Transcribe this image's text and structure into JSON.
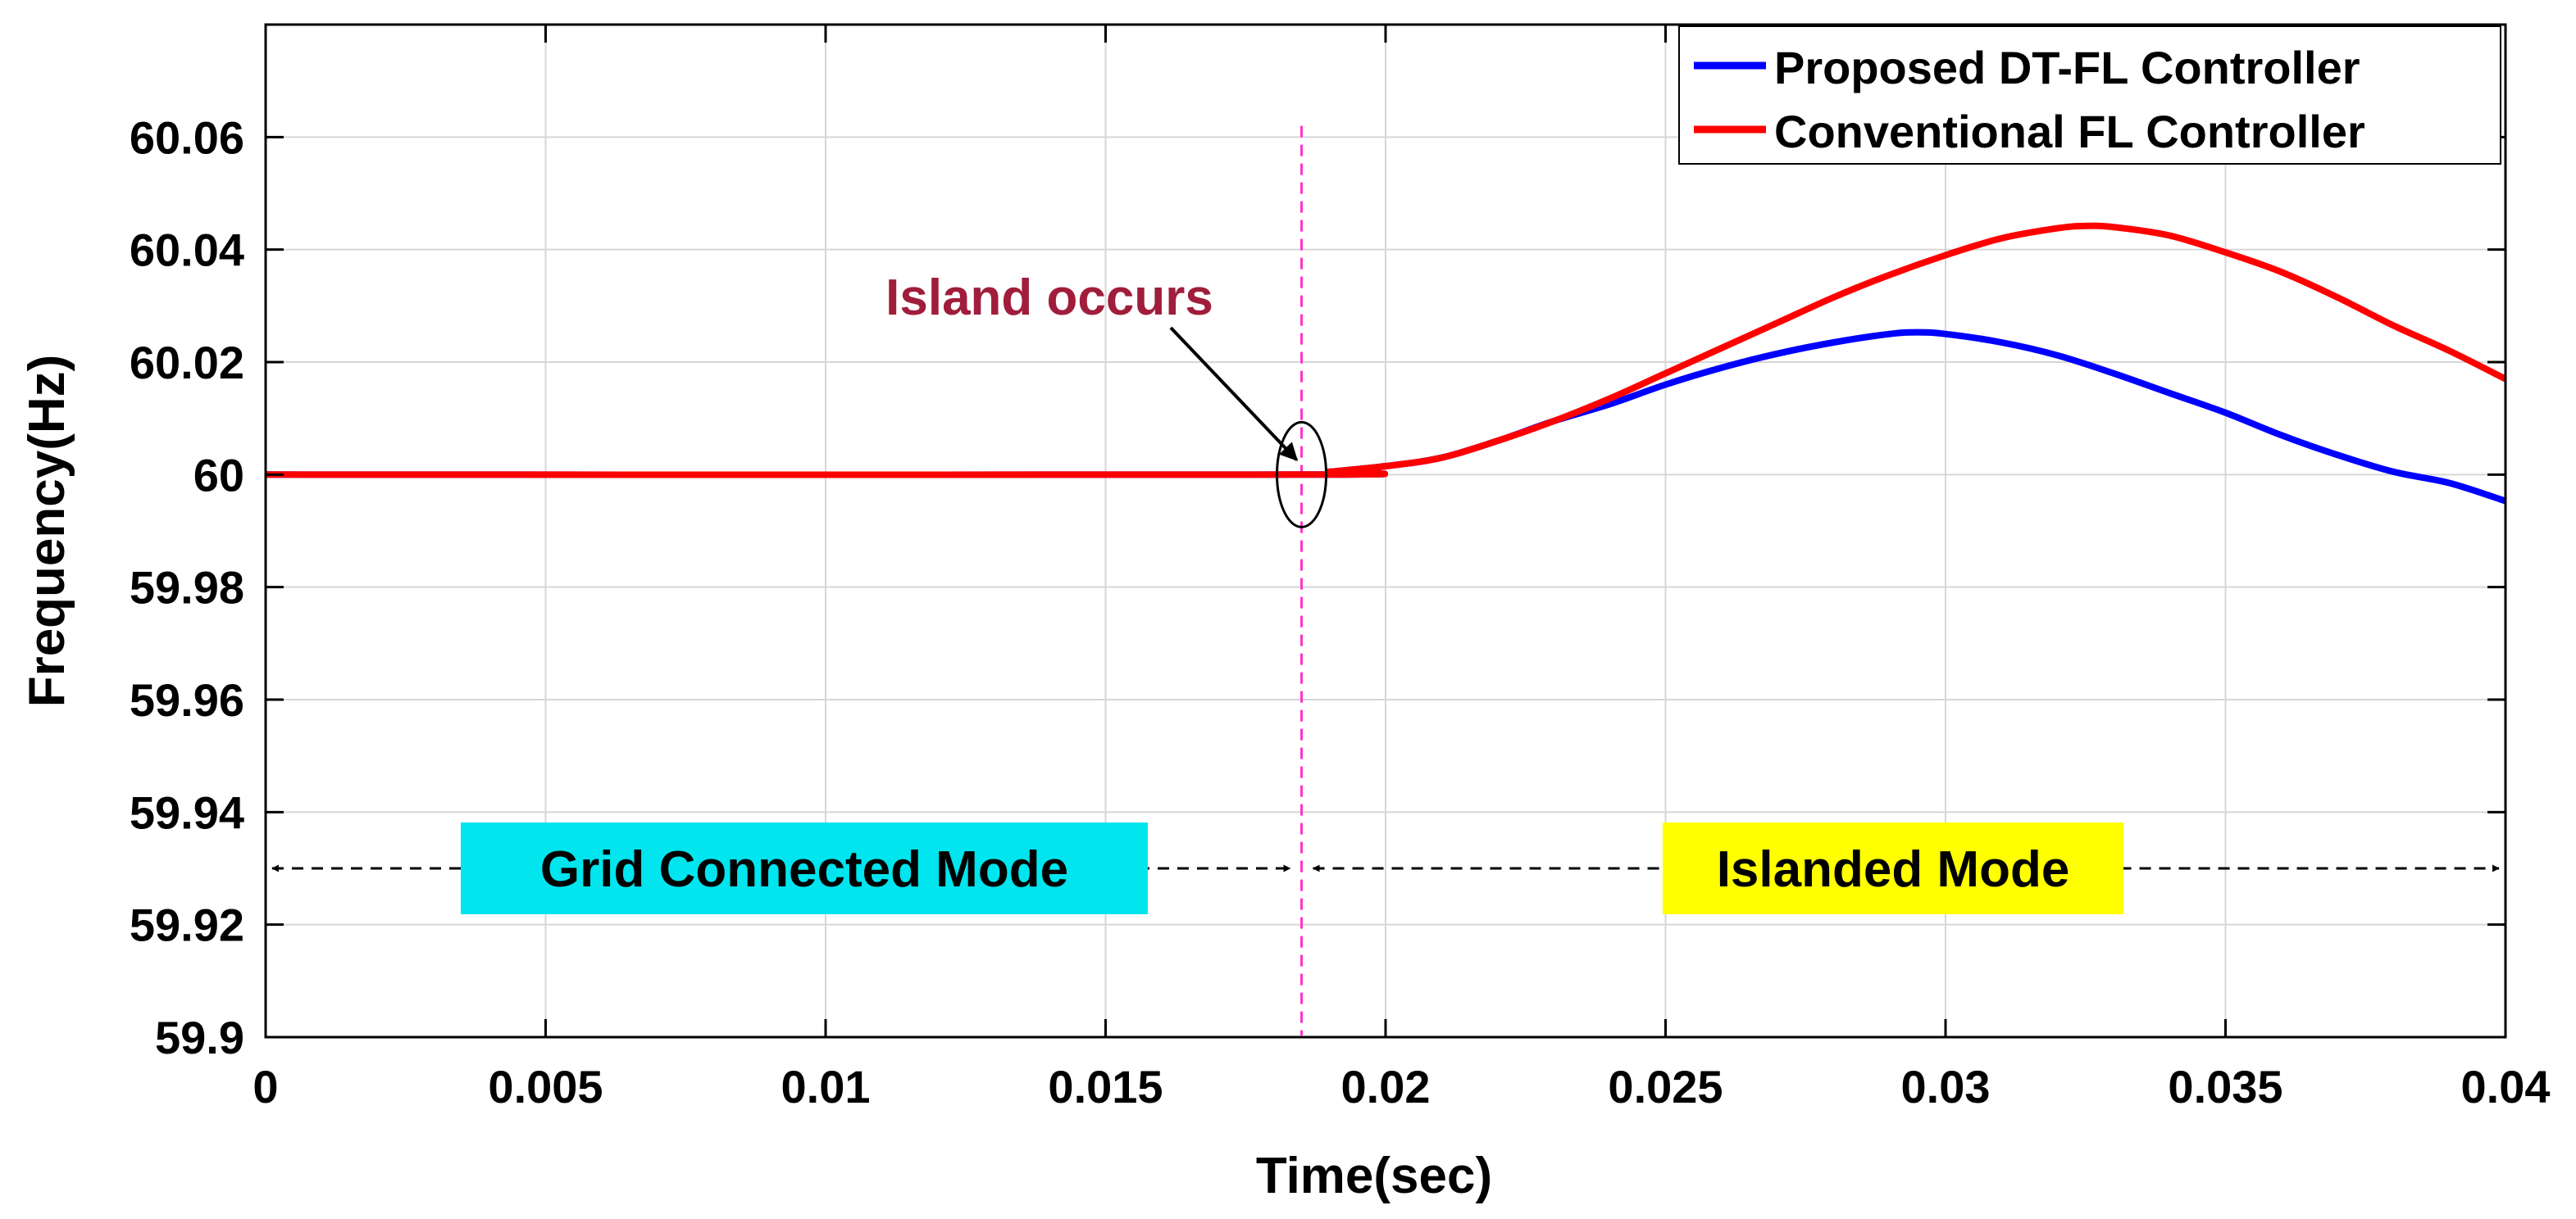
{
  "chart_data": {
    "type": "line",
    "title": "",
    "xlabel": "Time(sec)",
    "ylabel": "Frequency(Hz)",
    "xlim": [
      0,
      0.04
    ],
    "ylim": [
      59.9,
      60.08
    ],
    "grid": true,
    "legend_position": "top-right",
    "xticks": [
      0,
      0.005,
      0.01,
      0.015,
      0.02,
      0.025,
      0.03,
      0.035,
      0.04
    ],
    "xtick_labels": [
      "0",
      "0.005",
      "0.01",
      "0.015",
      "0.02",
      "0.025",
      "0.03",
      "0.035",
      "0.04"
    ],
    "yticks": [
      59.9,
      59.92,
      59.94,
      59.96,
      59.98,
      60,
      60.02,
      60.04,
      60.06
    ],
    "ytick_labels": [
      "59.9",
      "59.92",
      "59.94",
      "59.96",
      "59.98",
      "60",
      "60.02",
      "60.04",
      "60.06"
    ],
    "series": [
      {
        "name": "Proposed DT-FL Controller",
        "color": "#0000ff",
        "x": [
          0,
          0.0185,
          0.019,
          0.02,
          0.021,
          0.022,
          0.023,
          0.024,
          0.025,
          0.026,
          0.027,
          0.028,
          0.029,
          0.0295,
          0.03,
          0.031,
          0.032,
          0.033,
          0.034,
          0.035,
          0.036,
          0.037,
          0.038,
          0.039,
          0.04
        ],
        "y": [
          60,
          60,
          60.0005,
          60.0015,
          60.003,
          60.006,
          60.0095,
          60.0125,
          60.016,
          60.019,
          60.0215,
          60.0235,
          60.025,
          60.0253,
          60.025,
          60.0235,
          60.0212,
          60.018,
          60.0145,
          60.011,
          60.007,
          60.0035,
          60.0005,
          59.9985,
          59.9953
        ]
      },
      {
        "name": "Conventional FL Controller",
        "color": "#ff0000",
        "x": [
          0,
          0.0185,
          0.019,
          0.02,
          0.021,
          0.022,
          0.023,
          0.024,
          0.025,
          0.026,
          0.027,
          0.028,
          0.029,
          0.03,
          0.031,
          0.032,
          0.0325,
          0.033,
          0.034,
          0.035,
          0.036,
          0.037,
          0.038,
          0.039,
          0.04
        ],
        "y": [
          60,
          60,
          60.0005,
          60.0015,
          60.003,
          60.006,
          60.0095,
          60.0135,
          60.018,
          60.0225,
          60.027,
          60.0315,
          60.0355,
          60.039,
          60.042,
          60.0438,
          60.0442,
          60.044,
          60.0425,
          60.0395,
          60.036,
          60.0315,
          60.0265,
          60.022,
          60.017
        ]
      }
    ],
    "event_line": {
      "x": 0.0185,
      "color": "#ff33cc"
    },
    "annotations": {
      "island_label": "Island occurs",
      "island_label_color": "#a01d3c",
      "island_point": {
        "x": 0.0185,
        "y": 60
      },
      "mode_arrow_y": 59.93,
      "grid_mode": {
        "label": "Grid Connected Mode",
        "color": "#00e5ee",
        "x_from": 0,
        "x_to": 0.0185
      },
      "islanded_mode": {
        "label": "Islanded Mode",
        "color": "#ffff00",
        "x_from": 0.0185,
        "x_to": 0.04
      }
    }
  }
}
